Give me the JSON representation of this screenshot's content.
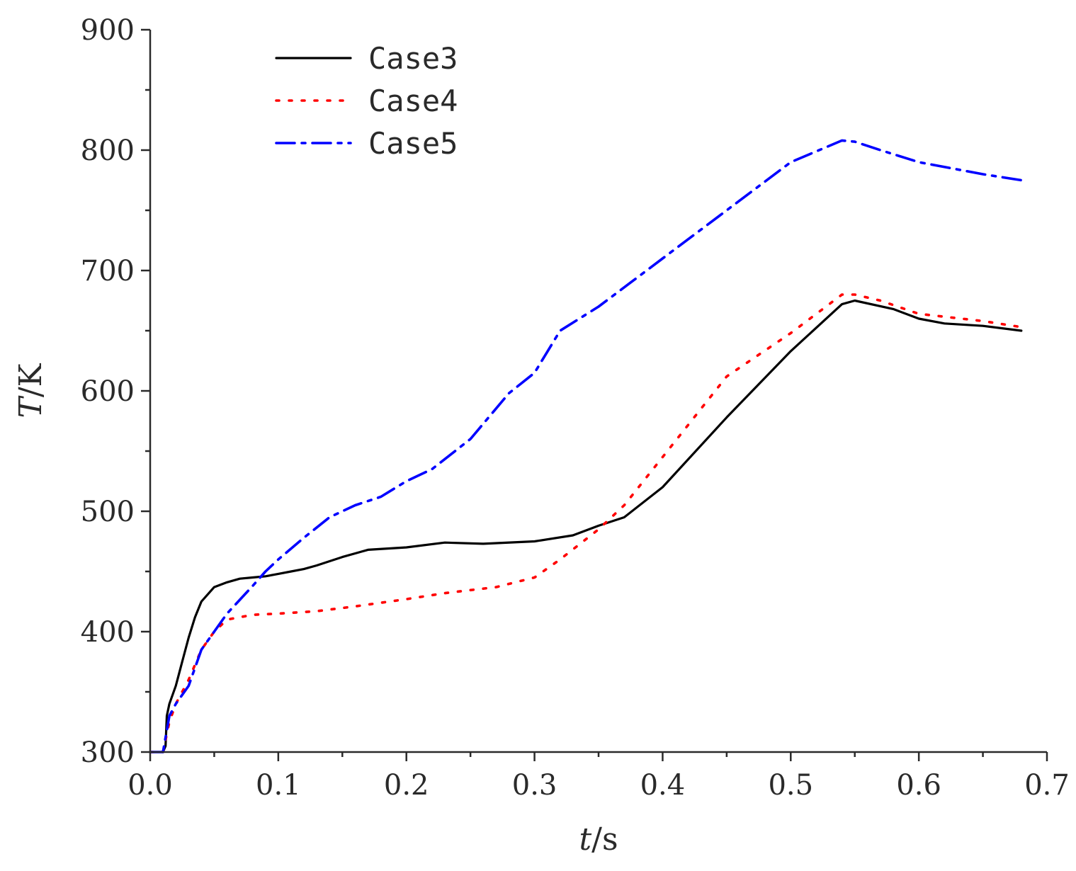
{
  "chart_data": {
    "type": "line",
    "title": "",
    "xlabel": "t/s",
    "ylabel": "T/K",
    "xlim": [
      0.0,
      0.7
    ],
    "ylim": [
      300,
      900
    ],
    "x_ticks": [
      0.0,
      0.1,
      0.2,
      0.3,
      0.4,
      0.5,
      0.6,
      0.7
    ],
    "x_tick_labels": [
      "0.0",
      "0.1",
      "0.2",
      "0.3",
      "0.4",
      "0.5",
      "0.6",
      "0.7"
    ],
    "y_ticks": [
      300,
      400,
      500,
      600,
      700,
      800,
      900
    ],
    "y_tick_labels": [
      "300",
      "400",
      "500",
      "600",
      "700",
      "800",
      "900"
    ],
    "grid": false,
    "legend_position": "top-left",
    "series": [
      {
        "name": "Case3",
        "color": "#000000",
        "style": "solid",
        "x": [
          0.0,
          0.01,
          0.012,
          0.013,
          0.015,
          0.02,
          0.025,
          0.03,
          0.035,
          0.04,
          0.05,
          0.06,
          0.07,
          0.08,
          0.09,
          0.1,
          0.11,
          0.12,
          0.13,
          0.15,
          0.17,
          0.2,
          0.23,
          0.26,
          0.3,
          0.33,
          0.35,
          0.37,
          0.4,
          0.45,
          0.5,
          0.54,
          0.55,
          0.58,
          0.6,
          0.62,
          0.65,
          0.68
        ],
        "y": [
          300,
          300,
          305,
          330,
          340,
          355,
          375,
          395,
          412,
          425,
          437,
          441,
          444,
          445,
          446,
          448,
          450,
          452,
          455,
          462,
          468,
          470,
          474,
          473,
          475,
          480,
          488,
          495,
          520,
          578,
          633,
          672,
          675,
          668,
          660,
          656,
          654,
          650
        ]
      },
      {
        "name": "Case4",
        "color": "#ff0000",
        "style": "dotted",
        "x": [
          0.0,
          0.01,
          0.015,
          0.02,
          0.03,
          0.04,
          0.05,
          0.06,
          0.08,
          0.1,
          0.13,
          0.16,
          0.2,
          0.23,
          0.27,
          0.3,
          0.32,
          0.35,
          0.37,
          0.4,
          0.45,
          0.5,
          0.54,
          0.55,
          0.57,
          0.6,
          0.65,
          0.68
        ],
        "y": [
          300,
          300,
          325,
          340,
          360,
          385,
          400,
          410,
          414,
          415,
          417,
          421,
          427,
          432,
          437,
          445,
          460,
          485,
          505,
          545,
          612,
          648,
          680,
          680,
          675,
          664,
          658,
          653
        ]
      },
      {
        "name": "Case5",
        "color": "#0000ff",
        "style": "dash-dot",
        "x": [
          0.0,
          0.01,
          0.015,
          0.02,
          0.03,
          0.04,
          0.05,
          0.06,
          0.08,
          0.09,
          0.1,
          0.12,
          0.14,
          0.16,
          0.18,
          0.2,
          0.22,
          0.25,
          0.28,
          0.3,
          0.32,
          0.35,
          0.4,
          0.45,
          0.5,
          0.54,
          0.55,
          0.57,
          0.6,
          0.65,
          0.68
        ],
        "y": [
          300,
          300,
          330,
          340,
          355,
          385,
          400,
          415,
          438,
          450,
          460,
          478,
          495,
          505,
          512,
          525,
          535,
          560,
          598,
          615,
          650,
          670,
          710,
          750,
          790,
          808,
          807,
          800,
          790,
          780,
          775
        ]
      }
    ]
  }
}
